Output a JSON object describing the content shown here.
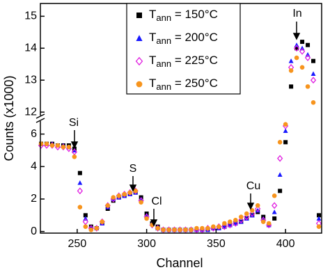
{
  "chart_data": {
    "type": "scatter",
    "xlabel": "Channel",
    "ylabel": "Counts (x1000)",
    "xlim": [
      223.5,
      426
    ],
    "xticks": [
      250,
      300,
      350,
      400
    ],
    "ylim_lower": [
      -0.1,
      6.8
    ],
    "yticks_lower": [
      0,
      2,
      4,
      6
    ],
    "ylim_upper": [
      11.85,
      15.4
    ],
    "yticks_upper": [
      12,
      13,
      14,
      15
    ],
    "annotations": [
      "Si",
      "S",
      "Cl",
      "Cu",
      "In"
    ],
    "x": [
      224,
      228,
      232,
      236,
      240,
      244,
      248,
      252,
      256,
      260,
      264,
      268,
      272,
      276,
      280,
      284,
      288,
      292,
      296,
      300,
      304,
      308,
      312,
      316,
      320,
      324,
      328,
      332,
      336,
      340,
      344,
      348,
      352,
      356,
      360,
      364,
      368,
      372,
      376,
      380,
      384,
      388,
      392,
      396,
      400,
      404,
      408,
      412,
      416,
      420,
      424
    ],
    "series": [
      {
        "name": "Tann = 150°C",
        "color": "#000000",
        "marker": "square",
        "values": [
          5.4,
          5.4,
          5.4,
          5.3,
          5.3,
          5.3,
          5.1,
          3.6,
          1.0,
          0.3,
          0.2,
          0.5,
          1.4,
          1.9,
          2.1,
          2.2,
          2.3,
          2.4,
          2.1,
          1.1,
          0.5,
          0.3,
          0.1,
          0.1,
          0.1,
          0.1,
          0.1,
          0.1,
          0.1,
          0.1,
          0.1,
          0.2,
          0.2,
          0.3,
          0.4,
          0.5,
          0.6,
          0.8,
          1.0,
          1.2,
          0.9,
          0.4,
          0.8,
          2.5,
          5.5,
          12.8,
          14.0,
          14.2,
          14.1,
          13.6,
          1.0
        ]
      },
      {
        "name": "Tann = 200°C",
        "color": "#1a1aff",
        "marker": "triangle",
        "values": [
          5.4,
          5.4,
          5.4,
          5.3,
          5.3,
          5.2,
          5.0,
          3.0,
          0.8,
          0.2,
          0.2,
          0.5,
          1.5,
          2.0,
          2.1,
          2.2,
          2.3,
          2.4,
          2.0,
          1.0,
          0.5,
          0.2,
          0.1,
          0.1,
          0.1,
          0.1,
          0.1,
          0.1,
          0.1,
          0.1,
          0.1,
          0.2,
          0.2,
          0.3,
          0.4,
          0.5,
          0.6,
          0.8,
          1.0,
          1.3,
          0.8,
          0.4,
          1.2,
          3.5,
          6.2,
          13.6,
          14.1,
          14.0,
          13.8,
          13.2,
          0.8
        ]
      },
      {
        "name": "Tann = 225°C",
        "color": "#e020e0",
        "marker": "diamond-open",
        "values": [
          5.3,
          5.3,
          5.3,
          5.2,
          5.2,
          5.1,
          4.9,
          2.5,
          0.6,
          0.2,
          0.2,
          0.6,
          1.6,
          2.0,
          2.2,
          2.3,
          2.4,
          2.5,
          1.9,
          0.9,
          0.4,
          0.2,
          0.1,
          0.1,
          0.1,
          0.1,
          0.1,
          0.1,
          0.1,
          0.1,
          0.2,
          0.2,
          0.3,
          0.3,
          0.4,
          0.5,
          0.7,
          0.9,
          1.1,
          1.4,
          0.7,
          0.4,
          1.6,
          4.5,
          6.5,
          13.4,
          14.0,
          13.9,
          13.7,
          13.0,
          0.5
        ]
      },
      {
        "name": "Tann = 250°C",
        "color": "#f7941d",
        "marker": "circle",
        "values": [
          5.4,
          5.4,
          5.3,
          5.3,
          5.2,
          5.2,
          4.6,
          1.5,
          0.3,
          0.1,
          0.2,
          0.6,
          1.6,
          2.1,
          2.2,
          2.3,
          2.4,
          2.5,
          1.8,
          0.8,
          0.4,
          0.2,
          0.1,
          0.1,
          0.1,
          0.1,
          0.1,
          0.1,
          0.2,
          0.2,
          0.2,
          0.3,
          0.3,
          0.5,
          0.6,
          0.7,
          0.9,
          1.1,
          1.3,
          1.6,
          0.6,
          0.5,
          2.2,
          5.5,
          6.6,
          13.3,
          13.7,
          13.4,
          12.8,
          12.3,
          0.3
        ]
      }
    ]
  }
}
